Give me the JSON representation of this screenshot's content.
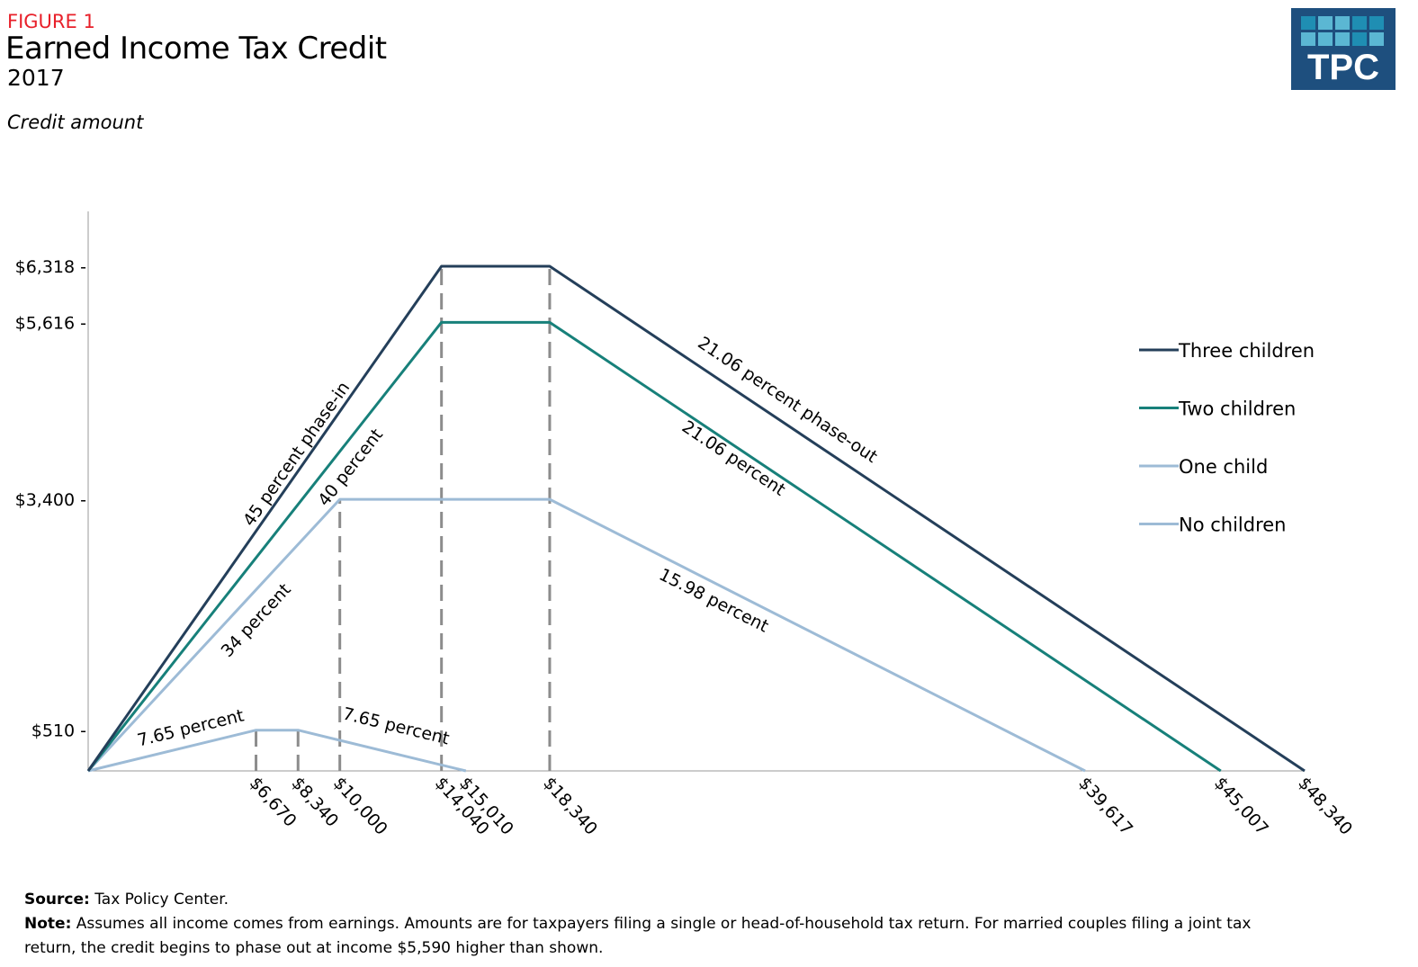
{
  "header": {
    "figure_label": "FIGURE 1",
    "title": "Earned Income Tax Credit",
    "subtitle": "2017",
    "y_axis_title": "Credit amount"
  },
  "logo": {
    "text": "TPC",
    "colors": {
      "bg": "#1e4f7e",
      "light": "#5bb7d3",
      "dark": "#1f8eb3"
    }
  },
  "chart_data": {
    "type": "line",
    "title": "Earned Income Tax Credit",
    "ylabel": "Credit amount",
    "xlim": [
      0,
      48340
    ],
    "ylim": [
      0,
      6318
    ],
    "legend_position": "right",
    "y_ticks": [
      {
        "value": 6318,
        "label": "$6,318 -"
      },
      {
        "value": 5616,
        "label": "$5,616 -"
      },
      {
        "value": 3400,
        "label": "$3,400 -"
      },
      {
        "value": 510,
        "label": "$510 -"
      }
    ],
    "x_ticks": [
      {
        "value": 6670,
        "label": "$6,670"
      },
      {
        "value": 8340,
        "label": "$8,340"
      },
      {
        "value": 10000,
        "label": "$10,000"
      },
      {
        "value": 14040,
        "label": "$14,040"
      },
      {
        "value": 15010,
        "label": "$15,010"
      },
      {
        "value": 18340,
        "label": "$18,340"
      },
      {
        "value": 39617,
        "label": "$39,617"
      },
      {
        "value": 45007,
        "label": "$45,007"
      },
      {
        "value": 48340,
        "label": "$48,340"
      }
    ],
    "series": [
      {
        "name": "Three children",
        "color": "#243f5a",
        "points": [
          [
            0,
            0
          ],
          [
            14040,
            6318
          ],
          [
            18340,
            6318
          ],
          [
            48340,
            0
          ]
        ]
      },
      {
        "name": "Two children",
        "color": "#17807a",
        "points": [
          [
            0,
            0
          ],
          [
            14040,
            5616
          ],
          [
            18340,
            5616
          ],
          [
            45007,
            0
          ]
        ]
      },
      {
        "name": "One child",
        "color": "#9dbbd6",
        "points": [
          [
            0,
            0
          ],
          [
            10000,
            3400
          ],
          [
            18340,
            3400
          ],
          [
            39617,
            0
          ]
        ]
      },
      {
        "name": "No children",
        "color": "#9dbbd6",
        "points": [
          [
            0,
            0
          ],
          [
            6670,
            510
          ],
          [
            8340,
            510
          ],
          [
            15010,
            0
          ]
        ]
      }
    ],
    "reference_lines": [
      {
        "x": 6670,
        "y": 510
      },
      {
        "x": 8340,
        "y": 510
      },
      {
        "x": 10000,
        "y": 3400
      },
      {
        "x": 14040,
        "y": 6318
      },
      {
        "x": 18340,
        "y": 6318
      }
    ],
    "annotations": [
      {
        "text": "45 percent phase-in",
        "series": 0,
        "segment": 0,
        "x": 8295,
        "y": 3964
      },
      {
        "text": "40 percent",
        "series": 1,
        "segment": 0,
        "x": 10440,
        "y": 3795
      },
      {
        "text": "34 percent",
        "series": 2,
        "segment": 0,
        "x": 6686,
        "y": 1880
      },
      {
        "text": "7.65 percent",
        "series": 3,
        "segment": 0,
        "x": 4076,
        "y": 530
      },
      {
        "text": "7.65 percent",
        "series": 3,
        "segment": 2,
        "x": 12228,
        "y": 552
      },
      {
        "text": "21.06 percent phase-out",
        "series": 0,
        "segment": 2,
        "x": 27780,
        "y": 4640
      },
      {
        "text": "21.06 percent",
        "series": 1,
        "segment": 2,
        "x": 25636,
        "y": 3908
      },
      {
        "text": "15.98 percent",
        "series": 2,
        "segment": 2,
        "x": 24850,
        "y": 2128
      }
    ]
  },
  "footer": {
    "source_label": "Source:",
    "source_text": " Tax Policy Center.",
    "note_label": "Note:",
    "note_text": " Assumes all income comes from earnings. Amounts are for taxpayers filing a single or head-of-household tax return. For married couples filing a joint tax return, the credit begins to phase out at income $5,590 higher than shown."
  }
}
